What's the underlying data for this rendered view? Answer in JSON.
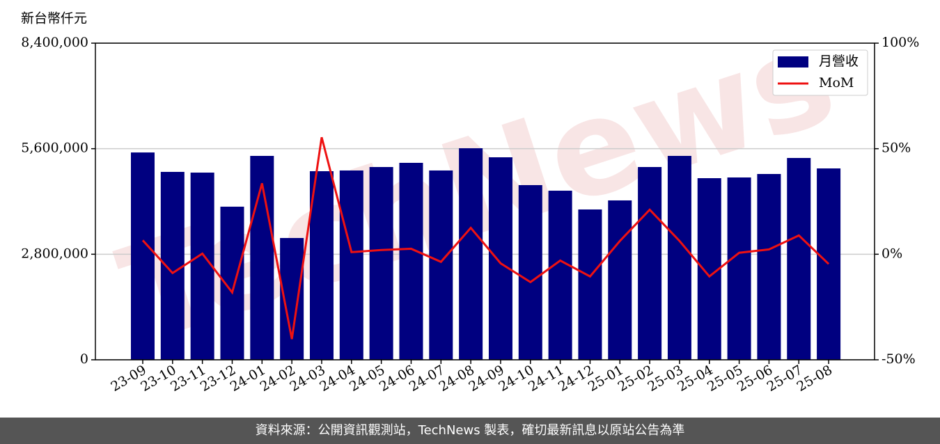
{
  "chart_data": {
    "type": "bar_line",
    "y_label": "新台幣仟元",
    "watermark": "TechNews",
    "categories": [
      "23-09",
      "23-10",
      "23-11",
      "23-12",
      "24-01",
      "24-02",
      "24-03",
      "24-04",
      "24-05",
      "24-06",
      "24-07",
      "24-08",
      "24-09",
      "24-10",
      "24-11",
      "24-12",
      "25-01",
      "25-02",
      "25-03",
      "25-04",
      "25-05",
      "25-06",
      "25-07",
      "25-08"
    ],
    "series": [
      {
        "name": "月營收",
        "type": "bar",
        "color": "#000080",
        "values": [
          5500000,
          4985000,
          4966000,
          4062000,
          5409000,
          3231000,
          5003000,
          5022000,
          5114000,
          5225000,
          5022000,
          5612000,
          5372000,
          4634000,
          4486000,
          3988000,
          4228000,
          5114000,
          5409000,
          4818000,
          4837000,
          4929000,
          5354000,
          5077000
        ]
      },
      {
        "name": "MoM",
        "type": "line",
        "axis": "y2",
        "color": "#ee1111",
        "values": [
          6.6,
          -8.9,
          0.3,
          -18.1,
          33.6,
          -40.2,
          55.4,
          1.0,
          2.0,
          2.6,
          -3.6,
          12.5,
          -4.3,
          -13.2,
          -3.0,
          -10.5,
          6.3,
          21.1,
          6.3,
          -10.5,
          0.7,
          2.3,
          8.9,
          -4.6
        ]
      }
    ],
    "ylim": [
      0,
      8400000
    ],
    "yticks": [
      0,
      {
        "value": 2800000,
        "label": "2,800,000"
      },
      {
        "value": 5600000,
        "label": "5,600,000"
      },
      {
        "value": 8400000,
        "label": "8,400,000"
      }
    ],
    "y2lim": [
      -50,
      100
    ],
    "y2ticks": [
      {
        "value": -50,
        "label": "-50%"
      },
      {
        "value": 0,
        "label": "0%"
      },
      {
        "value": 50,
        "label": "50%"
      },
      {
        "value": 100,
        "label": "100%"
      }
    ],
    "grid": true,
    "legend": "upper right",
    "footer": "資料來源：公開資訊觀測站，TechNews 製表，確切最新訊息以原站公告為準"
  }
}
